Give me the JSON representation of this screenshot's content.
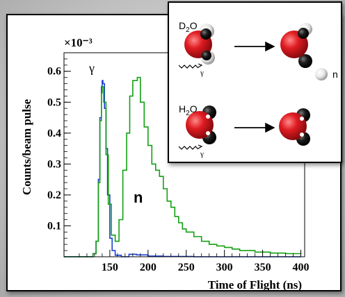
{
  "chart_data": {
    "type": "line",
    "ylabel": "Counts/beam pulse",
    "xlabel": "Time of Flight (ns)",
    "y_multiplier": "×10⁻³",
    "xlim": [
      90,
      405
    ],
    "ylim": [
      0,
      0.66
    ],
    "x_ticks": [
      150,
      200,
      250,
      300,
      350,
      400
    ],
    "y_ticks": [
      0.1,
      0.2,
      0.3,
      0.4,
      0.5,
      0.6
    ],
    "annotations": {
      "gamma": "γ",
      "neutron": "n"
    },
    "series": [
      {
        "color": "#1a3fd6",
        "x": [
          90,
          120,
          128,
          132,
          135,
          137,
          139,
          140,
          141,
          143,
          145,
          147,
          150,
          153,
          157,
          165,
          175,
          185,
          200,
          220,
          260,
          300,
          350,
          400
        ],
        "y": [
          0.0,
          0.0,
          0.01,
          0.05,
          0.25,
          0.45,
          0.55,
          0.57,
          0.56,
          0.48,
          0.35,
          0.2,
          0.06,
          0.02,
          0.005,
          0.0,
          0.008,
          0.006,
          0.002,
          0.001,
          0.0,
          0.0,
          0.0,
          0.0
        ]
      },
      {
        "color": "#12a012",
        "x": [
          90,
          120,
          128,
          132,
          135,
          137,
          139,
          140,
          142,
          145,
          148,
          152,
          157,
          162,
          167,
          172,
          176,
          180,
          183,
          186,
          190,
          195,
          200,
          205,
          210,
          215,
          220,
          225,
          230,
          235,
          240,
          245,
          250,
          260,
          270,
          280,
          290,
          300,
          310,
          320,
          340,
          360,
          380,
          400
        ],
        "y": [
          0.0,
          0.0,
          0.01,
          0.05,
          0.24,
          0.44,
          0.53,
          0.55,
          0.5,
          0.33,
          0.17,
          0.07,
          0.05,
          0.12,
          0.28,
          0.4,
          0.52,
          0.57,
          0.57,
          0.58,
          0.5,
          0.42,
          0.36,
          0.3,
          0.28,
          0.26,
          0.22,
          0.18,
          0.16,
          0.13,
          0.11,
          0.09,
          0.08,
          0.065,
          0.05,
          0.04,
          0.035,
          0.03,
          0.025,
          0.02,
          0.015,
          0.012,
          0.01,
          0.008
        ]
      }
    ]
  },
  "inset": {
    "top_label_main": "D",
    "top_label_sub": "2",
    "top_label_tail": "O",
    "bottom_label_main": "H",
    "bottom_label_sub": "2",
    "bottom_label_tail": "O",
    "gamma_symbol": "γ",
    "neutron_label": "n",
    "colors": {
      "oxygen": "#d8141c",
      "hydrogen_light": "#f2f2f2",
      "hydrogen_dark": "#111111"
    }
  }
}
